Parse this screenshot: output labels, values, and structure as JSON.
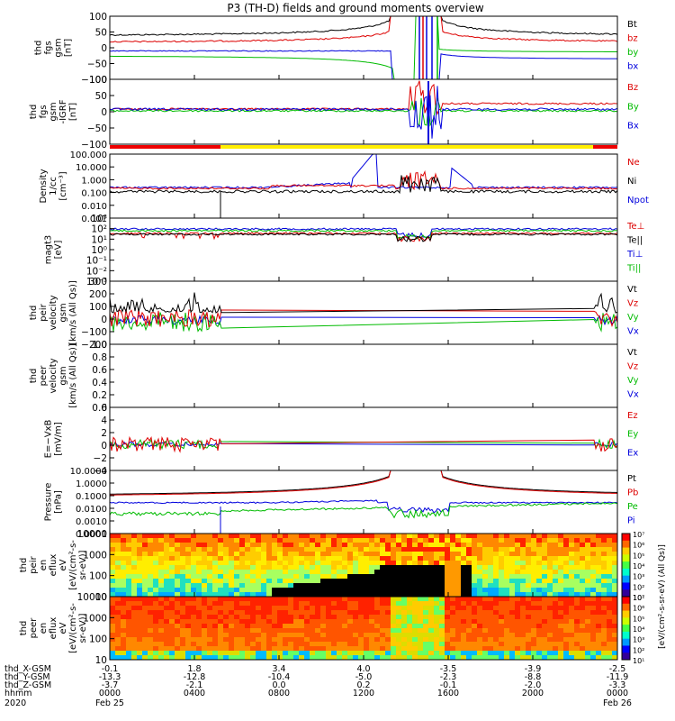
{
  "title": "P3 (TH-D) fields and ground moments overview",
  "chart_data": {
    "type": "multi-panel time series",
    "x_ticks": [
      "0000",
      "0400",
      "0800",
      "1200",
      "1600",
      "2000",
      "0000"
    ],
    "date_labels": [
      "Feb 25",
      "Feb 26"
    ],
    "year": "2020",
    "ephemeris": [
      {
        "label": "thd_X-GSM",
        "values": [
          "-0.1",
          "1.8",
          "3.4",
          "4.0",
          "-3.5",
          "-3.9",
          "-2.5"
        ]
      },
      {
        "label": "thd_Y-GSM",
        "values": [
          "-13.3",
          "-12.8",
          "-10.4",
          "-5.0",
          "-2.3",
          "-8.8",
          "-11.9"
        ]
      },
      {
        "label": "thd_Z-GSM",
        "values": [
          "-3.7",
          "-2.1",
          "0.0",
          "0.2",
          "-0.1",
          "-2.0",
          "-3.3"
        ]
      },
      {
        "label": "hhmm",
        "values": [
          "0000",
          "0400",
          "0800",
          "1200",
          "1600",
          "2000",
          "0000"
        ]
      }
    ],
    "panels": [
      {
        "ylabel": [
          "thd",
          "fgs",
          "gsm",
          "[nT]"
        ],
        "ticks": [
          "100",
          "50",
          "0",
          "−50",
          "−100"
        ],
        "legend": [
          {
            "t": "Bt",
            "c": "#000000"
          },
          {
            "t": "bz",
            "c": "#dd0000"
          },
          {
            "t": "by",
            "c": "#00bb00"
          },
          {
            "t": "bx",
            "c": "#0000dd"
          }
        ]
      },
      {
        "ylabel": [
          "thd",
          "fgs",
          "gsm",
          "-IGRF",
          "[nT]"
        ],
        "ticks": [
          "100",
          "50",
          "0",
          "−50",
          "−100"
        ],
        "legend": [
          {
            "t": "Bz",
            "c": "#dd0000"
          },
          {
            "t": "By",
            "c": "#00bb00"
          },
          {
            "t": "Bx",
            "c": "#0000dd"
          }
        ]
      },
      {
        "ylabel": [
          "Density",
          "1/cc",
          "[cm⁻³]"
        ],
        "ticks": [
          "100.000",
          "10.000",
          "1.000",
          "0.100",
          "0.010",
          "0.001"
        ],
        "legend": [
          {
            "t": "Ne",
            "c": "#dd0000"
          },
          {
            "t": "Ni",
            "c": "#000000"
          },
          {
            "t": "Npot",
            "c": "#0000dd"
          }
        ]
      },
      {
        "ylabel": [
          "magt3",
          "[eV]"
        ],
        "ticks": [
          "10³",
          "10²",
          "10¹",
          "10⁰",
          "10⁻¹",
          "10⁻²",
          "10⁻³"
        ],
        "legend": [
          {
            "t": "Te⊥",
            "c": "#dd0000"
          },
          {
            "t": "Te||",
            "c": "#000000"
          },
          {
            "t": "Ti⊥",
            "c": "#0000dd"
          },
          {
            "t": "Ti||",
            "c": "#00bb00"
          }
        ]
      },
      {
        "ylabel": [
          "thd",
          "peir",
          "velocity",
          "gsm",
          "[km/s (All Qs)]"
        ],
        "ticks": [
          "300",
          "200",
          "100",
          "0",
          "−100",
          "−200"
        ],
        "legend": [
          {
            "t": "Vt",
            "c": "#000000"
          },
          {
            "t": "Vz",
            "c": "#dd0000"
          },
          {
            "t": "Vy",
            "c": "#00bb00"
          },
          {
            "t": "Vx",
            "c": "#0000dd"
          }
        ]
      },
      {
        "ylabel": [
          "thd",
          "peer",
          "velocity",
          "gsm",
          "[km/s (All Qs)]"
        ],
        "ticks": [
          "1.0",
          "0.8",
          "0.6",
          "0.4",
          "0.2",
          "0.0"
        ],
        "legend": [
          {
            "t": "Vt",
            "c": "#000000"
          },
          {
            "t": "Vz",
            "c": "#dd0000"
          },
          {
            "t": "Vy",
            "c": "#00bb00"
          },
          {
            "t": "Vx",
            "c": "#0000dd"
          }
        ]
      },
      {
        "ylabel": [
          "E=−VxB",
          "[mV/m]"
        ],
        "ticks": [
          "6",
          "4",
          "2",
          "0",
          "−2",
          "−4"
        ],
        "legend": [
          {
            "t": "Ez",
            "c": "#dd0000"
          },
          {
            "t": "Ey",
            "c": "#00bb00"
          },
          {
            "t": "Ex",
            "c": "#0000dd"
          }
        ]
      },
      {
        "ylabel": [
          "Pressure",
          "[nPa]"
        ],
        "ticks": [
          "10.0000",
          "1.0000",
          "0.1000",
          "0.0100",
          "0.0010",
          "0.0001"
        ],
        "legend": [
          {
            "t": "Pt",
            "c": "#000000"
          },
          {
            "t": "Pb",
            "c": "#dd0000"
          },
          {
            "t": "Pe",
            "c": "#00bb00"
          },
          {
            "t": "Pi",
            "c": "#0000dd"
          }
        ]
      },
      {
        "ylabel": [
          "thd",
          "peir",
          "en",
          "eflux",
          "eV",
          "[eV/(cm²-s-",
          "sr-eV)]"
        ],
        "ticks": [
          "10000",
          "1000",
          "100",
          "10"
        ]
      },
      {
        "ylabel": [
          "thd",
          "peer",
          "en",
          "eflux",
          "eV",
          "[eV/(cm²-s-",
          "sr-eV)]"
        ],
        "ticks": [
          "10000",
          "1000",
          "100",
          "10"
        ]
      }
    ],
    "colorbar": {
      "ticks": [
        "10⁷",
        "10⁶",
        "10⁵",
        "10⁴",
        "10³",
        "10²",
        "10¹"
      ],
      "label": "[eV/(cm²-s-sr-eV) (All Qs)]"
    }
  }
}
